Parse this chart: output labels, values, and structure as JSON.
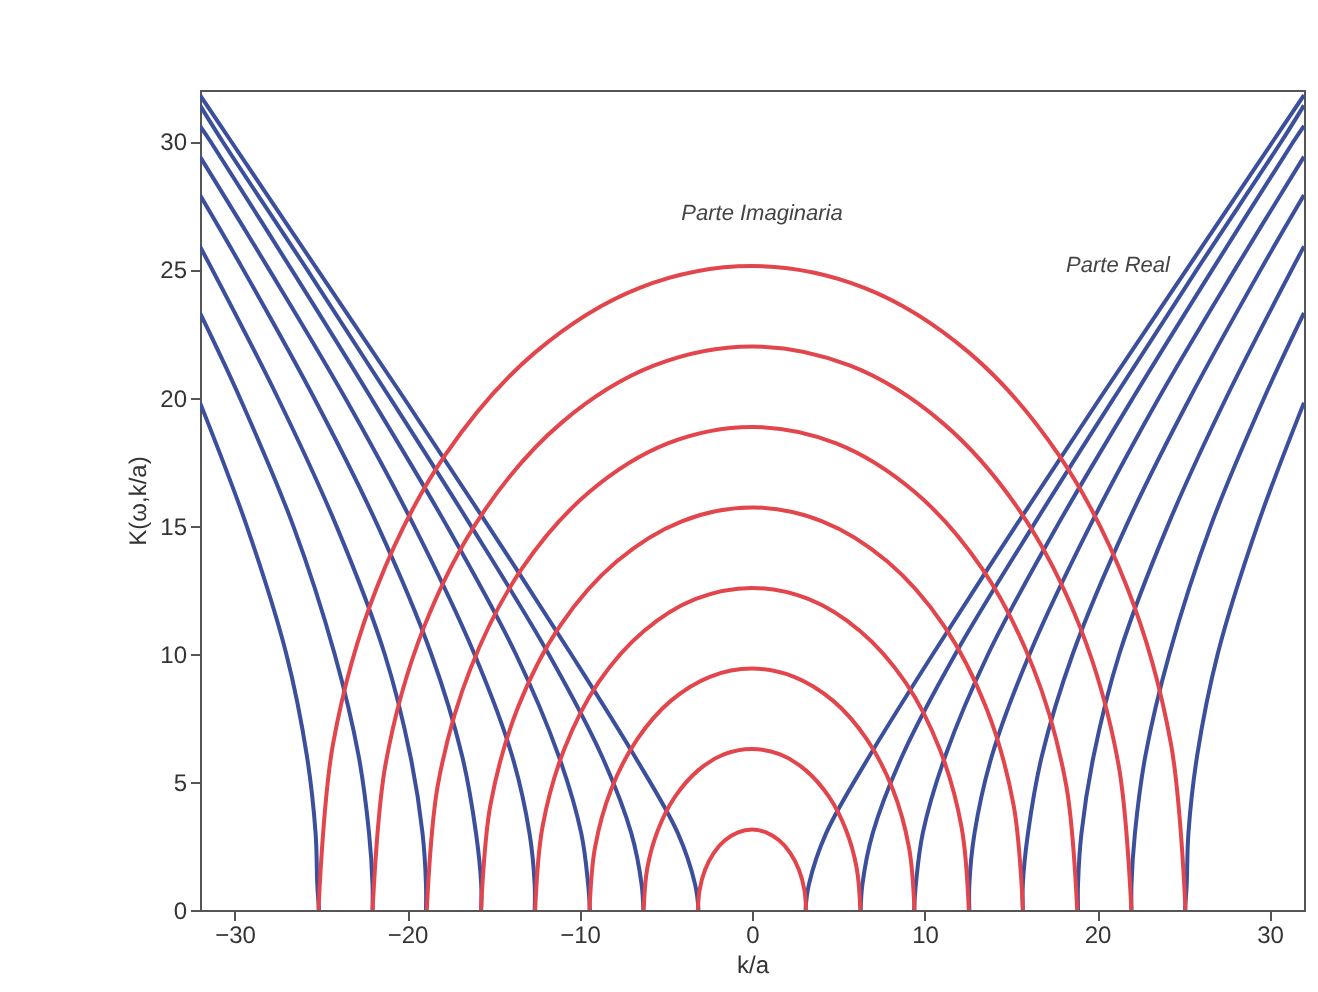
{
  "chart_data": {
    "type": "line",
    "xlabel": "k/a",
    "ylabel": "K(ω,k/a)",
    "xlim": [
      -32,
      32
    ],
    "ylim": [
      0,
      32
    ],
    "xticks": [
      -30,
      -20,
      -10,
      0,
      10,
      20,
      30
    ],
    "yticks": [
      0,
      5,
      10,
      15,
      20,
      25,
      30
    ],
    "grid": false,
    "legend": false,
    "line_style": "solid",
    "marker": "none",
    "annotations": [
      "Parte Imaginaria",
      "Parte Real"
    ],
    "series": [
      {
        "color": "#3b4f9c",
        "x": [
          -32,
          -30.2,
          -25.2,
          -20.2,
          -15.3,
          -10.5,
          -6.8,
          -4.3,
          -3.3,
          -3.1
        ],
        "values": [
          31.8,
          30,
          25,
          20,
          15,
          10,
          6,
          3,
          1,
          0
        ]
      },
      {
        "color": "#3b4f9c",
        "x": [
          -32,
          -30.7,
          -25.8,
          -21.0,
          -16.3,
          -11.8,
          -8.7,
          -7.0,
          -6.4,
          -6.3
        ],
        "values": [
          31.4,
          30,
          25,
          20,
          15,
          10,
          6,
          3,
          1,
          0
        ]
      },
      {
        "color": "#3b4f9c",
        "x": [
          -32,
          -31.4,
          -26.7,
          -22.1,
          -17.7,
          -13.7,
          -11.2,
          -9.9,
          -9.5,
          -9.4
        ],
        "values": [
          30.6,
          30,
          25,
          20,
          15,
          10,
          6,
          3,
          1,
          0
        ]
      },
      {
        "color": "#3b4f9c",
        "x": [
          -32,
          -28.0,
          -23.6,
          -19.6,
          -16.1,
          -13.9,
          -12.9,
          -12.6,
          -12.6
        ],
        "values": [
          29.4,
          25,
          20,
          15,
          10,
          6,
          3,
          1,
          0
        ]
      },
      {
        "color": "#3b4f9c",
        "x": [
          -32,
          -29.5,
          -25.4,
          -21.7,
          -18.6,
          -16.8,
          -16.0,
          -15.7,
          -15.7
        ],
        "values": [
          27.9,
          25,
          20,
          15,
          10,
          6,
          3,
          1,
          0
        ]
      },
      {
        "color": "#3b4f9c",
        "x": [
          -32,
          -27.5,
          -24.1,
          -21.3,
          -19.8,
          -19.1,
          -18.9,
          -18.9
        ],
        "values": [
          25.9,
          20,
          15,
          10,
          6,
          3,
          1,
          0
        ]
      },
      {
        "color": "#3b4f9c",
        "x": [
          -32,
          -29.7,
          -26.6,
          -24.2,
          -22.8,
          -22.2,
          -22.0,
          -22.0
        ],
        "values": [
          23.3,
          20,
          15,
          10,
          6,
          3,
          1,
          0
        ]
      },
      {
        "color": "#3b4f9c",
        "x": [
          -32,
          -29.3,
          -27.0,
          -25.8,
          -25.3,
          -25.2,
          -25.1
        ],
        "values": [
          19.8,
          15,
          10,
          6,
          3,
          1,
          0
        ]
      },
      {
        "color": "#3b4f9c",
        "x": [
          3.1,
          3.3,
          4.3,
          6.8,
          10.5,
          15.3,
          20.2,
          25.2,
          30.2,
          32
        ],
        "values": [
          0,
          1,
          3,
          6,
          10,
          15,
          20,
          25,
          30,
          31.8
        ]
      },
      {
        "color": "#3b4f9c",
        "x": [
          6.3,
          6.4,
          7.0,
          8.7,
          11.8,
          16.3,
          21.0,
          25.8,
          30.7,
          32
        ],
        "values": [
          0,
          1,
          3,
          6,
          10,
          15,
          20,
          25,
          30,
          31.4
        ]
      },
      {
        "color": "#3b4f9c",
        "x": [
          9.4,
          9.5,
          9.9,
          11.2,
          13.7,
          17.7,
          22.1,
          26.7,
          31.4,
          32
        ],
        "values": [
          0,
          1,
          3,
          6,
          10,
          15,
          20,
          25,
          30,
          30.6
        ]
      },
      {
        "color": "#3b4f9c",
        "x": [
          12.6,
          12.6,
          12.9,
          13.9,
          16.1,
          19.6,
          23.6,
          28.0,
          32
        ],
        "values": [
          0,
          1,
          3,
          6,
          10,
          15,
          20,
          25,
          29.4
        ]
      },
      {
        "color": "#3b4f9c",
        "x": [
          15.7,
          15.7,
          16.0,
          16.8,
          18.6,
          21.7,
          25.4,
          29.5,
          32
        ],
        "values": [
          0,
          1,
          3,
          6,
          10,
          15,
          20,
          25,
          27.9
        ]
      },
      {
        "color": "#3b4f9c",
        "x": [
          18.9,
          18.9,
          19.1,
          19.8,
          21.3,
          24.1,
          27.5,
          32
        ],
        "values": [
          0,
          1,
          3,
          6,
          10,
          15,
          20,
          25.9
        ]
      },
      {
        "color": "#3b4f9c",
        "x": [
          22.0,
          22.0,
          22.2,
          22.8,
          24.2,
          26.6,
          29.7,
          32
        ],
        "values": [
          0,
          1,
          3,
          6,
          10,
          15,
          20,
          23.3
        ]
      },
      {
        "color": "#3b4f9c",
        "x": [
          25.1,
          25.2,
          25.3,
          25.8,
          27.0,
          29.3,
          32
        ],
        "values": [
          0,
          1,
          3,
          6,
          10,
          15,
          19.8
        ]
      },
      {
        "color": "#e2454b",
        "x": [
          -3.14,
          -3.03,
          -2.72,
          -2.22,
          -1.57,
          -0.81,
          0,
          0.81,
          1.57,
          2.22,
          2.72,
          3.03,
          3.14
        ],
        "values": [
          0,
          0.81,
          1.57,
          2.22,
          2.72,
          3.03,
          3.14,
          3.03,
          2.72,
          2.22,
          1.57,
          0.81,
          0
        ]
      },
      {
        "color": "#e2454b",
        "x": [
          -6.28,
          -6.07,
          -5.44,
          -4.44,
          -3.14,
          -1.63,
          0,
          1.63,
          3.14,
          4.44,
          5.44,
          6.07,
          6.28
        ],
        "values": [
          0,
          1.63,
          3.14,
          4.44,
          5.44,
          6.07,
          6.28,
          6.07,
          5.44,
          4.44,
          3.14,
          1.63,
          0
        ]
      },
      {
        "color": "#e2454b",
        "x": [
          -9.42,
          -9.1,
          -8.16,
          -6.66,
          -4.71,
          -2.44,
          0,
          2.44,
          4.71,
          6.66,
          8.16,
          9.1,
          9.42
        ],
        "values": [
          0,
          2.44,
          4.71,
          6.66,
          8.16,
          9.1,
          9.42,
          9.1,
          8.16,
          6.66,
          4.71,
          2.44,
          0
        ]
      },
      {
        "color": "#e2454b",
        "x": [
          -12.57,
          -12.14,
          -10.88,
          -8.89,
          -6.28,
          -3.26,
          0,
          3.26,
          6.28,
          8.89,
          10.88,
          12.14,
          12.57
        ],
        "values": [
          0,
          3.26,
          6.28,
          8.89,
          10.88,
          12.14,
          12.57,
          12.14,
          10.88,
          8.89,
          6.28,
          3.26,
          0
        ]
      },
      {
        "color": "#e2454b",
        "x": [
          -15.71,
          -15.17,
          -13.6,
          -11.11,
          -7.85,
          -4.07,
          0,
          4.07,
          7.85,
          11.11,
          13.6,
          15.17,
          15.71
        ],
        "values": [
          0,
          4.07,
          7.85,
          11.11,
          13.6,
          15.17,
          15.71,
          15.17,
          13.6,
          11.11,
          7.85,
          4.07,
          0
        ]
      },
      {
        "color": "#e2454b",
        "x": [
          -18.85,
          -18.21,
          -16.32,
          -13.33,
          -9.42,
          -4.88,
          0,
          4.88,
          9.42,
          13.33,
          16.32,
          18.21,
          18.85
        ],
        "values": [
          0,
          4.88,
          9.42,
          13.33,
          16.32,
          18.21,
          18.85,
          18.21,
          16.32,
          13.33,
          9.42,
          4.88,
          0
        ]
      },
      {
        "color": "#e2454b",
        "x": [
          -21.99,
          -21.24,
          -19.04,
          -15.55,
          -11.0,
          -5.7,
          0,
          5.7,
          11.0,
          15.55,
          19.04,
          21.24,
          21.99
        ],
        "values": [
          0,
          5.7,
          11.0,
          15.55,
          19.04,
          21.24,
          21.99,
          21.24,
          19.04,
          15.55,
          11.0,
          5.7,
          0
        ]
      },
      {
        "color": "#e2454b",
        "x": [
          -25.13,
          -24.28,
          -21.76,
          -17.77,
          -12.57,
          -6.51,
          0,
          6.51,
          12.57,
          17.77,
          21.76,
          24.28,
          25.13
        ],
        "values": [
          0,
          6.51,
          12.57,
          17.77,
          21.76,
          24.28,
          25.13,
          24.28,
          21.76,
          17.77,
          12.57,
          6.51,
          0
        ]
      }
    ]
  }
}
